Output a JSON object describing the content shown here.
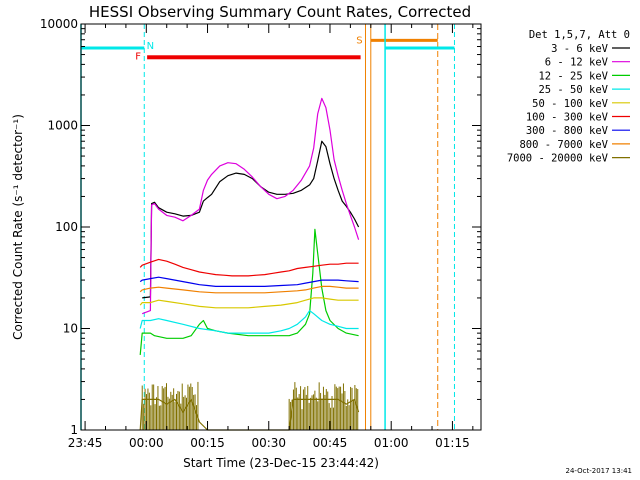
{
  "chart_data": {
    "type": "line",
    "title": "HESSI Observing Summary Count Rates, Corrected",
    "xlabel": "Start Time (23-Dec-15 23:44:42)",
    "ylabel": "Corrected Count Rate (s⁻¹ detector⁻¹)",
    "y_scale": "log",
    "ylim": [
      1,
      10000
    ],
    "xlim_minutes": [
      -1,
      97
    ],
    "x_ticks": [
      {
        "label": "23:45",
        "t": 0
      },
      {
        "label": "00:00",
        "t": 15
      },
      {
        "label": "00:15",
        "t": 30
      },
      {
        "label": "00:30",
        "t": 45
      },
      {
        "label": "00:45",
        "t": 60
      },
      {
        "label": "01:00",
        "t": 75
      },
      {
        "label": "01:15",
        "t": 90
      }
    ],
    "y_ticks": [
      {
        "label": "1",
        "v": 1
      },
      {
        "label": "10",
        "v": 10
      },
      {
        "label": "100",
        "v": 100
      },
      {
        "label": "1000",
        "v": 1000
      },
      {
        "label": "10000",
        "v": 10000
      }
    ],
    "legend_header": "Det 1,5,7, Att 0",
    "legend_position": "right",
    "series": [
      {
        "name": "3 - 6 keV",
        "color": "#000000",
        "points": [
          [
            14,
            20
          ],
          [
            16,
            20.5
          ],
          [
            16.3,
            170
          ],
          [
            17,
            175
          ],
          [
            18,
            155
          ],
          [
            20,
            140
          ],
          [
            22,
            135
          ],
          [
            24,
            128
          ],
          [
            26,
            130
          ],
          [
            28,
            140
          ],
          [
            29,
            180
          ],
          [
            30,
            195
          ],
          [
            31,
            210
          ],
          [
            33,
            280
          ],
          [
            35,
            320
          ],
          [
            37,
            340
          ],
          [
            39,
            330
          ],
          [
            41,
            300
          ],
          [
            43,
            250
          ],
          [
            45,
            220
          ],
          [
            47,
            210
          ],
          [
            49,
            210
          ],
          [
            51,
            215
          ],
          [
            53,
            230
          ],
          [
            55,
            260
          ],
          [
            56,
            300
          ],
          [
            57,
            450
          ],
          [
            58,
            700
          ],
          [
            59,
            620
          ],
          [
            60,
            420
          ],
          [
            61,
            300
          ],
          [
            62,
            230
          ],
          [
            63,
            180
          ],
          [
            64,
            160
          ],
          [
            65,
            140
          ],
          [
            66,
            120
          ],
          [
            67,
            100
          ]
        ]
      },
      {
        "name": "6 - 12 keV",
        "color": "#dd00dd",
        "points": [
          [
            14,
            14
          ],
          [
            16,
            15
          ],
          [
            16.3,
            165
          ],
          [
            17,
            170
          ],
          [
            18,
            150
          ],
          [
            20,
            130
          ],
          [
            22,
            125
          ],
          [
            24,
            115
          ],
          [
            26,
            130
          ],
          [
            28,
            150
          ],
          [
            29,
            230
          ],
          [
            30,
            290
          ],
          [
            31,
            330
          ],
          [
            33,
            400
          ],
          [
            35,
            430
          ],
          [
            37,
            420
          ],
          [
            39,
            370
          ],
          [
            41,
            310
          ],
          [
            43,
            250
          ],
          [
            45,
            210
          ],
          [
            47,
            190
          ],
          [
            49,
            200
          ],
          [
            51,
            230
          ],
          [
            53,
            290
          ],
          [
            55,
            400
          ],
          [
            56,
            600
          ],
          [
            57,
            1300
          ],
          [
            58,
            1850
          ],
          [
            59,
            1500
          ],
          [
            60,
            900
          ],
          [
            61,
            460
          ],
          [
            62,
            320
          ],
          [
            63,
            230
          ],
          [
            64,
            170
          ],
          [
            65,
            130
          ],
          [
            66,
            100
          ],
          [
            67,
            75
          ]
        ]
      },
      {
        "name": "12 - 25 keV",
        "color": "#00cc00",
        "points": [
          [
            13.5,
            5.5
          ],
          [
            14,
            9
          ],
          [
            16,
            9
          ],
          [
            17,
            8.5
          ],
          [
            20,
            8
          ],
          [
            24,
            8
          ],
          [
            26,
            8.5
          ],
          [
            28,
            11
          ],
          [
            29,
            12
          ],
          [
            30,
            10
          ],
          [
            32,
            9.5
          ],
          [
            35,
            9
          ],
          [
            40,
            8.5
          ],
          [
            45,
            8.5
          ],
          [
            50,
            8.5
          ],
          [
            52,
            9
          ],
          [
            54,
            11
          ],
          [
            55,
            14
          ],
          [
            55.8,
            35
          ],
          [
            56.3,
            95
          ],
          [
            57,
            55
          ],
          [
            58,
            25
          ],
          [
            59,
            15
          ],
          [
            60,
            12
          ],
          [
            62,
            10
          ],
          [
            64,
            9
          ],
          [
            67,
            8.5
          ]
        ]
      },
      {
        "name": "25 - 50 keV",
        "color": "#00e8e8",
        "points": [
          [
            13.5,
            10
          ],
          [
            14,
            12
          ],
          [
            16,
            12
          ],
          [
            18,
            12.5
          ],
          [
            20,
            12
          ],
          [
            24,
            11
          ],
          [
            28,
            10
          ],
          [
            32,
            9.5
          ],
          [
            35,
            9
          ],
          [
            40,
            9
          ],
          [
            45,
            9
          ],
          [
            48,
            9.5
          ],
          [
            50,
            10
          ],
          [
            52,
            11
          ],
          [
            54,
            13
          ],
          [
            55,
            15
          ],
          [
            56,
            14
          ],
          [
            58,
            12
          ],
          [
            60,
            11
          ],
          [
            62,
            10.5
          ],
          [
            64,
            10
          ],
          [
            67,
            10
          ]
        ]
      },
      {
        "name": "50 - 100 keV",
        "color": "#d8c800",
        "points": [
          [
            13.5,
            17
          ],
          [
            14,
            18
          ],
          [
            16,
            18
          ],
          [
            18,
            19
          ],
          [
            20,
            18.5
          ],
          [
            24,
            17.5
          ],
          [
            28,
            16.5
          ],
          [
            32,
            16
          ],
          [
            36,
            16
          ],
          [
            40,
            16
          ],
          [
            44,
            16.5
          ],
          [
            48,
            17
          ],
          [
            52,
            18
          ],
          [
            54,
            19
          ],
          [
            56,
            20
          ],
          [
            58,
            20
          ],
          [
            60,
            19.5
          ],
          [
            62,
            19
          ],
          [
            64,
            19
          ],
          [
            67,
            19
          ]
        ]
      },
      {
        "name": "100 - 300 keV",
        "color": "#ee0000",
        "points": [
          [
            13.5,
            40
          ],
          [
            14,
            42
          ],
          [
            16,
            45
          ],
          [
            18,
            48
          ],
          [
            20,
            46
          ],
          [
            22,
            43
          ],
          [
            24,
            40
          ],
          [
            26,
            38
          ],
          [
            28,
            36
          ],
          [
            30,
            35
          ],
          [
            32,
            34
          ],
          [
            34,
            33.5
          ],
          [
            36,
            33
          ],
          [
            38,
            33
          ],
          [
            40,
            33
          ],
          [
            42,
            33.5
          ],
          [
            44,
            34
          ],
          [
            46,
            35
          ],
          [
            48,
            36
          ],
          [
            50,
            37
          ],
          [
            52,
            39
          ],
          [
            54,
            40
          ],
          [
            56,
            41
          ],
          [
            58,
            42
          ],
          [
            60,
            43
          ],
          [
            62,
            43
          ],
          [
            64,
            44
          ],
          [
            66,
            44
          ],
          [
            67,
            44
          ]
        ]
      },
      {
        "name": "300 - 800 keV",
        "color": "#0000ee",
        "points": [
          [
            13.5,
            29
          ],
          [
            14,
            30
          ],
          [
            16,
            31
          ],
          [
            18,
            32
          ],
          [
            20,
            31
          ],
          [
            22,
            30
          ],
          [
            24,
            29
          ],
          [
            26,
            28
          ],
          [
            28,
            27
          ],
          [
            30,
            26.5
          ],
          [
            32,
            26
          ],
          [
            36,
            26
          ],
          [
            40,
            26
          ],
          [
            44,
            26
          ],
          [
            48,
            26.5
          ],
          [
            52,
            27
          ],
          [
            54,
            28
          ],
          [
            56,
            29
          ],
          [
            58,
            30
          ],
          [
            60,
            30
          ],
          [
            62,
            30
          ],
          [
            64,
            29.5
          ],
          [
            67,
            29
          ]
        ]
      },
      {
        "name": "800 - 7000 keV",
        "color": "#f08000",
        "points": [
          [
            13.5,
            23
          ],
          [
            14,
            24
          ],
          [
            16,
            25
          ],
          [
            18,
            25.5
          ],
          [
            20,
            25
          ],
          [
            24,
            24
          ],
          [
            28,
            23
          ],
          [
            32,
            22.5
          ],
          [
            36,
            22.5
          ],
          [
            40,
            22.5
          ],
          [
            44,
            22.5
          ],
          [
            48,
            23
          ],
          [
            52,
            23.5
          ],
          [
            54,
            24
          ],
          [
            56,
            25
          ],
          [
            58,
            26
          ],
          [
            60,
            26
          ],
          [
            62,
            25.5
          ],
          [
            64,
            25
          ],
          [
            67,
            25
          ]
        ]
      },
      {
        "name": "7000 - 20000 keV",
        "color": "#807000",
        "points": [
          [
            13.5,
            1
          ],
          [
            14,
            2
          ],
          [
            16,
            2
          ],
          [
            18,
            2
          ],
          [
            20,
            1.8
          ],
          [
            22,
            2
          ],
          [
            24,
            1.5
          ],
          [
            26,
            2
          ],
          [
            28,
            1.2
          ],
          [
            30,
            1
          ],
          [
            40,
            1
          ],
          [
            50,
            1
          ],
          [
            51,
            2
          ],
          [
            52,
            2
          ],
          [
            54,
            2
          ],
          [
            56,
            2
          ],
          [
            58,
            2
          ],
          [
            60,
            2
          ],
          [
            62,
            2
          ],
          [
            64,
            1.8
          ],
          [
            66,
            2
          ],
          [
            67,
            1.5
          ]
        ]
      }
    ],
    "annotations": [
      {
        "label": "N",
        "color": "#00e8e8"
      },
      {
        "label": "F",
        "color": "#ee0000"
      },
      {
        "label": "S",
        "color": "#f08000"
      }
    ],
    "footer_date": "24-Oct-2017 13:41"
  }
}
